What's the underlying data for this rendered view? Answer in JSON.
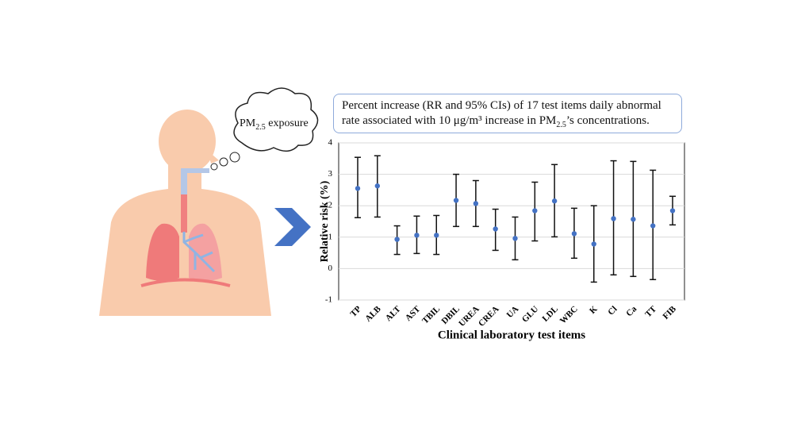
{
  "chart_data": {
    "type": "errorbar",
    "title": [
      "Percent increase (RR and 95% CIs) of 17 test items daily abnormal",
      "rate associated with 10 μg/m³ increase in PM",
      "2.5",
      "’s concentrations."
    ],
    "annotation": [
      "PM",
      "2.5",
      "exposure"
    ],
    "x_label": "Clinical laboratory  test items",
    "y_label": "Relative risk (%)",
    "categories": [
      "TP",
      "ALB",
      "ALT",
      "AST",
      "TBIL",
      "DBIL",
      "UREA",
      "CREA",
      "UA",
      "GLU",
      "LDL",
      "WBC",
      "K",
      "Cl",
      "Ca",
      "TT",
      "FIB"
    ],
    "values": [
      2.55,
      2.63,
      0.93,
      1.06,
      1.06,
      2.17,
      2.07,
      1.26,
      0.96,
      1.84,
      2.15,
      1.11,
      0.78,
      1.59,
      1.57,
      1.36,
      1.84
    ],
    "lower": [
      1.62,
      1.64,
      0.45,
      0.48,
      0.45,
      1.34,
      1.34,
      0.58,
      0.28,
      0.88,
      1.01,
      0.33,
      -0.43,
      -0.2,
      -0.25,
      -0.35,
      1.39
    ],
    "upper": [
      3.54,
      3.59,
      1.36,
      1.67,
      1.69,
      3.0,
      2.8,
      1.89,
      1.64,
      2.75,
      3.31,
      1.92,
      2.0,
      3.43,
      3.41,
      3.13,
      2.3
    ],
    "color": "#4472c4",
    "bar_color": "#111111",
    "ylim": [
      -1,
      4
    ],
    "yticks": [
      -1,
      0,
      1,
      2,
      3,
      4
    ],
    "grid": true
  }
}
